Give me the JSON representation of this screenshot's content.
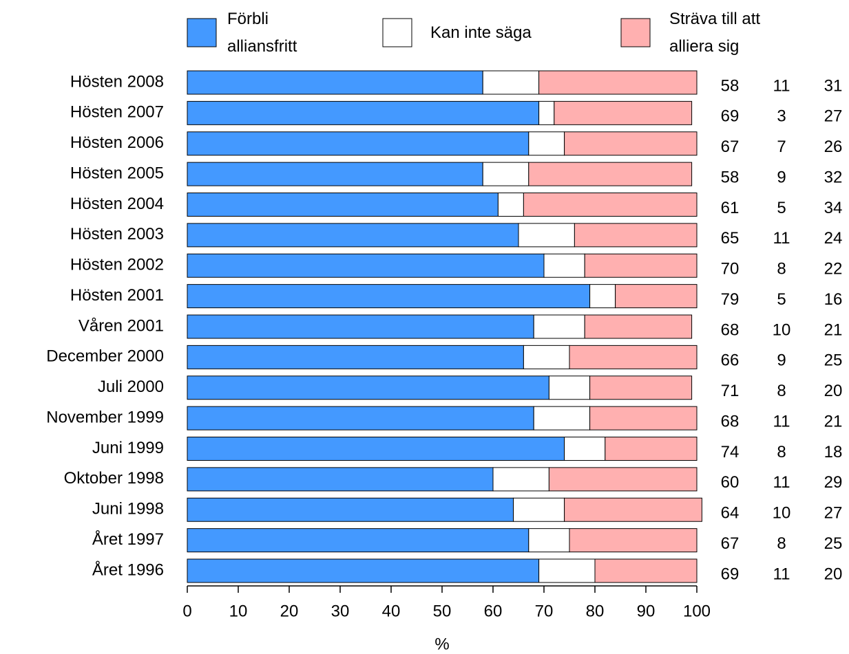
{
  "chart_data": {
    "type": "stacked_barh",
    "categories": [
      "Hösten 2008",
      "Hösten 2007",
      "Hösten 2006",
      "Hösten 2005",
      "Hösten 2004",
      "Hösten 2003",
      "Hösten 2002",
      "Hösten 2001",
      "Våren 2001",
      "December 2000",
      "Juli 2000",
      "November 1999",
      "Juni 1999",
      "Oktober 1998",
      "Juni 1998",
      "Året 1997",
      "Året 1996"
    ],
    "series": [
      {
        "name": "Förbli alliansfritt",
        "color": "#4499ff",
        "values": [
          58,
          69,
          67,
          58,
          61,
          65,
          70,
          79,
          68,
          66,
          71,
          68,
          74,
          60,
          64,
          67,
          69
        ]
      },
      {
        "name": "Kan inte säga",
        "color": "#ffffff",
        "values": [
          11,
          3,
          7,
          9,
          5,
          11,
          8,
          5,
          10,
          9,
          8,
          11,
          8,
          11,
          10,
          8,
          11
        ]
      },
      {
        "name": "Sträva till att alliera sig",
        "color": "#ffb0b0",
        "values": [
          31,
          27,
          26,
          32,
          34,
          24,
          22,
          16,
          21,
          25,
          20,
          21,
          18,
          29,
          27,
          25,
          20
        ]
      }
    ],
    "xlabel": "%",
    "xlim": [
      0,
      100
    ],
    "xticks": [
      0,
      10,
      20,
      30,
      40,
      50,
      60,
      70,
      80,
      90,
      100
    ]
  }
}
